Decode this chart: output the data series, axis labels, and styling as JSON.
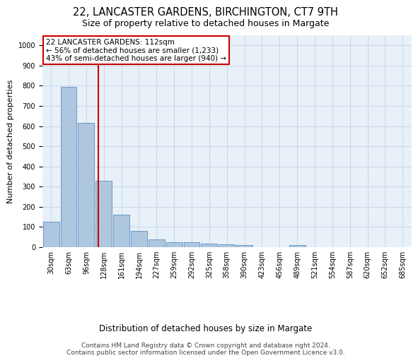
{
  "title1": "22, LANCASTER GARDENS, BIRCHINGTON, CT7 9TH",
  "title2": "Size of property relative to detached houses in Margate",
  "xlabel": "Distribution of detached houses by size in Margate",
  "ylabel": "Number of detached properties",
  "bar_labels": [
    "30sqm",
    "63sqm",
    "96sqm",
    "128sqm",
    "161sqm",
    "194sqm",
    "227sqm",
    "259sqm",
    "292sqm",
    "325sqm",
    "358sqm",
    "390sqm",
    "423sqm",
    "456sqm",
    "489sqm",
    "521sqm",
    "554sqm",
    "587sqm",
    "620sqm",
    "652sqm",
    "685sqm"
  ],
  "bar_heights": [
    125,
    795,
    615,
    330,
    160,
    80,
    40,
    25,
    25,
    17,
    15,
    9,
    0,
    0,
    10,
    0,
    0,
    0,
    0,
    0,
    0
  ],
  "bar_color": "#aec6de",
  "bar_edge_color": "#6699cc",
  "grid_color": "#c8d8e8",
  "bg_color": "#e8f0f8",
  "annotation_text": "22 LANCASTER GARDENS: 112sqm\n← 56% of detached houses are smaller (1,233)\n43% of semi-detached houses are larger (940) →",
  "annotation_box_color": "#ffffff",
  "annotation_box_edge": "#cc0000",
  "vline_color": "#cc0000",
  "vline_x": 2.67,
  "ylim": [
    0,
    1050
  ],
  "yticks": [
    0,
    100,
    200,
    300,
    400,
    500,
    600,
    700,
    800,
    900,
    1000
  ],
  "footnote1": "Contains HM Land Registry data © Crown copyright and database right 2024.",
  "footnote2": "Contains public sector information licensed under the Open Government Licence v3.0.",
  "title1_fontsize": 10.5,
  "title2_fontsize": 9,
  "ylabel_fontsize": 8,
  "xlabel_fontsize": 8.5,
  "tick_fontsize": 7,
  "footnote_fontsize": 6.5,
  "annot_fontsize": 7.5
}
